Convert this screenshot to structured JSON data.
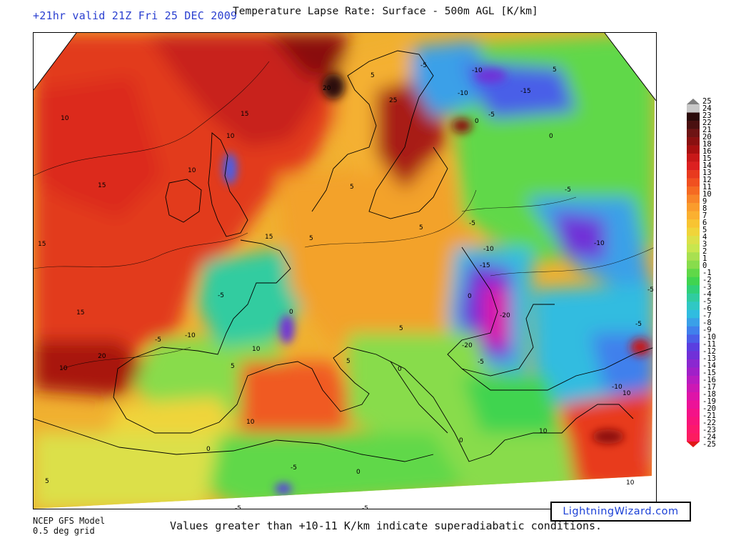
{
  "header": {
    "valid_time": "+21hr valid 21Z Fri 25 DEC 2009",
    "title": "Temperature Lapse Rate: Surface - 500m AGL  [K/km]"
  },
  "footer": {
    "model_line1": "NCEP GFS Model",
    "model_line2": "0.5 deg grid",
    "note": "Values greater than +10-11 K/km indicate superadiabatic conditions.",
    "brand": "LightningWizard.com"
  },
  "colorbar": {
    "labels": [
      "25",
      "24",
      "23",
      "22",
      "21",
      "20",
      "18",
      "16",
      "15",
      "14",
      "13",
      "12",
      "11",
      "10",
      "9",
      "8",
      "7",
      "6",
      "5",
      "4",
      "3",
      "2",
      "1",
      "0",
      "-1",
      "-2",
      "-3",
      "-4",
      "-5",
      "-6",
      "-7",
      "-8",
      "-9",
      "-10",
      "-11",
      "-12",
      "-13",
      "-14",
      "-15",
      "-16",
      "-17",
      "-18",
      "-19",
      "-20",
      "-21",
      "-22",
      "-23",
      "-24",
      "-25"
    ],
    "colors": [
      "#c8c8c8",
      "#2a0a0a",
      "#4a1010",
      "#6e1414",
      "#8a1010",
      "#a81010",
      "#c81818",
      "#dc2020",
      "#e83a1e",
      "#f05020",
      "#f56a22",
      "#f88528",
      "#fa9c2c",
      "#fbb030",
      "#f8c432",
      "#f0d43a",
      "#dce048",
      "#c8e64e",
      "#a8e050",
      "#88dc4c",
      "#60d848",
      "#40d450",
      "#30d078",
      "#30cca0",
      "#30c8c4",
      "#30bce0",
      "#3aa0e8",
      "#4080ec",
      "#4a5ee8",
      "#5a3ee0",
      "#7030d8",
      "#8a28d0",
      "#a020c8",
      "#b81cc0",
      "#cc18b4",
      "#de14a8",
      "#ec1298",
      "#f41288",
      "#f8147a",
      "#fc186c",
      "#fc1c60"
    ],
    "max_marker_color": "#808080",
    "min_marker_color": "#e01818"
  },
  "map": {
    "region": "Europe",
    "contour_labels": [
      {
        "text": "10",
        "at": "north-atlantic-west"
      },
      {
        "text": "15",
        "at": "north-atlantic"
      },
      {
        "text": "15",
        "at": "atlantic-mid"
      },
      {
        "text": "15",
        "at": "west-edge"
      },
      {
        "text": "15",
        "at": "bay-of-biscay-west"
      },
      {
        "text": "20",
        "at": "atlantic-south"
      },
      {
        "text": "10",
        "at": "atlantic-southwest"
      },
      {
        "text": "20",
        "at": "norway-coast"
      },
      {
        "text": "25",
        "at": "baltic"
      },
      {
        "text": "5",
        "at": "scandinavia"
      },
      {
        "text": "-5",
        "at": "finland"
      },
      {
        "text": "-10",
        "at": "russia-north"
      },
      {
        "text": "-15",
        "at": "russia-north-east"
      },
      {
        "text": "-10",
        "at": "karelia"
      },
      {
        "text": "-5",
        "at": "russia-north-2"
      },
      {
        "text": "0",
        "at": "russia-north-3"
      },
      {
        "text": "5",
        "at": "russia-north-east-2"
      },
      {
        "text": "0",
        "at": "russia-central"
      },
      {
        "text": "-5",
        "at": "russia-central-2"
      },
      {
        "text": "-5",
        "at": "ukraine-north"
      },
      {
        "text": "-10",
        "at": "ukraine"
      },
      {
        "text": "-15",
        "at": "ukraine-2"
      },
      {
        "text": "-20",
        "at": "black-sea-north"
      },
      {
        "text": "-20",
        "at": "black-sea-west"
      },
      {
        "text": "-5",
        "at": "black-sea-south"
      },
      {
        "text": "0",
        "at": "ukraine-west"
      },
      {
        "text": "-10",
        "at": "caspian"
      },
      {
        "text": "-5",
        "at": "caucasus"
      },
      {
        "text": "-5",
        "at": "caspian-east"
      },
      {
        "text": "-10",
        "at": "anatolia"
      },
      {
        "text": "10",
        "at": "levant"
      },
      {
        "text": "10",
        "at": "egypt"
      },
      {
        "text": "5",
        "at": "germany"
      },
      {
        "text": "5",
        "at": "poland"
      },
      {
        "text": "5",
        "at": "benelux"
      },
      {
        "text": "5",
        "at": "balkans"
      },
      {
        "text": "5",
        "at": "italy"
      },
      {
        "text": "0",
        "at": "adriatic"
      },
      {
        "text": "-5",
        "at": "france"
      },
      {
        "text": "0",
        "at": "alps"
      },
      {
        "text": "15",
        "at": "english-channel"
      },
      {
        "text": "10",
        "at": "scotland"
      },
      {
        "text": "10",
        "at": "ireland"
      },
      {
        "text": "-10",
        "at": "iberia-east"
      },
      {
        "text": "10",
        "at": "balearic"
      },
      {
        "text": "-5",
        "at": "iberia"
      },
      {
        "text": "10",
        "at": "mediterranean-west"
      },
      {
        "text": "5",
        "at": "north-africa"
      },
      {
        "text": "0",
        "at": "north-africa-2"
      },
      {
        "text": "-5",
        "at": "north-africa-3"
      },
      {
        "text": "5",
        "at": "sahara-west"
      },
      {
        "text": "-5",
        "at": "sahara"
      },
      {
        "text": "0",
        "at": "libya"
      },
      {
        "text": "-5",
        "at": "libya-south"
      },
      {
        "text": "0",
        "at": "greece"
      },
      {
        "text": "10",
        "at": "cyprus"
      }
    ]
  }
}
